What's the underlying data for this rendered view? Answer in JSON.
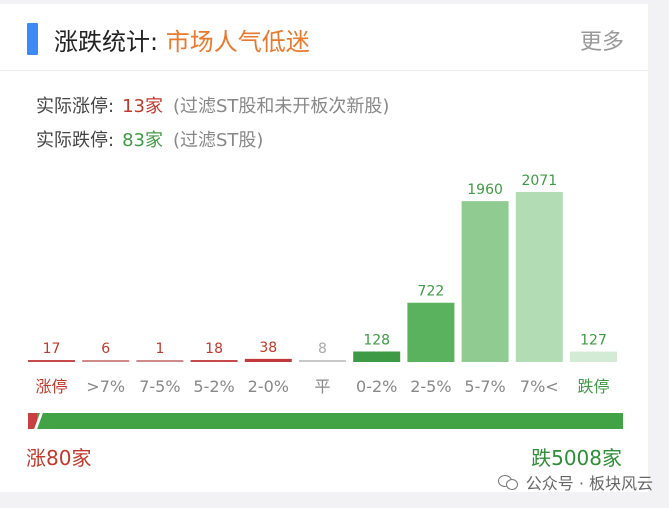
{
  "header": {
    "title_main": "涨跌统计:",
    "title_sub": "市场人气低迷",
    "more_label": "更多"
  },
  "stats": {
    "up_label": "实际涨停:",
    "up_count": "13家",
    "up_note": "(过滤ST股和未开板次新股)",
    "down_label": "实际跌停:",
    "down_count": "83家",
    "down_note": "(过滤ST股)"
  },
  "chart_data": {
    "type": "bar",
    "categories": [
      "涨停",
      ">7%",
      "7-5%",
      "5-2%",
      "2-0%",
      "平",
      "0-2%",
      "2-5%",
      "5-7%",
      "7%<",
      "跌停"
    ],
    "values": [
      17,
      6,
      1,
      18,
      38,
      8,
      128,
      722,
      1960,
      2071,
      127
    ],
    "colors": [
      "#c94a4a",
      "#d08a8a",
      "#d08a8a",
      "#c94a4a",
      "#c0393b",
      "#c8c8c8",
      "#3f9a45",
      "#5ab25e",
      "#90cc92",
      "#b2dcb4",
      "#d3ebd4"
    ],
    "label_colors": [
      "#c0392b",
      "#c0392b",
      "#c0392b",
      "#c0392b",
      "#c0392b",
      "#aaaaaa",
      "#3f9a45",
      "#3f9a45",
      "#3f9a45",
      "#3f9a45",
      "#3f9a45"
    ],
    "category_colors": [
      "#c0392b",
      "#888888",
      "#888888",
      "#888888",
      "#888888",
      "#888888",
      "#888888",
      "#888888",
      "#888888",
      "#888888",
      "#3f9a45"
    ],
    "ylim": [
      0,
      2071
    ],
    "title": "",
    "xlabel": "",
    "ylabel": ""
  },
  "summary": {
    "up_total": "涨80家",
    "down_total": "跌5008家",
    "up_ratio": 0.0157
  },
  "watermark": {
    "text": "公众号 · 板块风云"
  }
}
